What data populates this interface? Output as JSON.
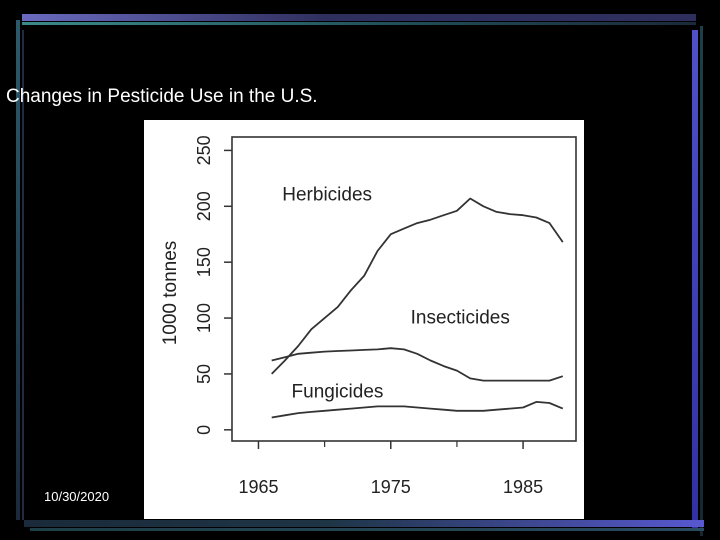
{
  "slide": {
    "title": "Changes in Pesticide Use in the U.S.",
    "date": "10/30/2020"
  },
  "colors": {
    "background": "#000000",
    "panel": "#ffffff",
    "line": "#333333"
  },
  "chart_data": {
    "type": "line",
    "title": "",
    "xlabel": "",
    "ylabel": "1000 tonnes",
    "xlim": [
      1963,
      1989
    ],
    "ylim": [
      -10,
      262
    ],
    "x_ticks": [
      1965,
      1975,
      1985
    ],
    "y_ticks": [
      0,
      50,
      100,
      150,
      200,
      250
    ],
    "grid": false,
    "legend": "none (direct labels)",
    "series": [
      {
        "name": "Herbicides",
        "x": [
          1966,
          1967,
          1968,
          1969,
          1970,
          1971,
          1972,
          1973,
          1974,
          1975,
          1976,
          1977,
          1978,
          1979,
          1980,
          1981,
          1982,
          1983,
          1984,
          1985,
          1986,
          1987,
          1988
        ],
        "y": [
          50,
          62,
          75,
          90,
          100,
          110,
          125,
          138,
          160,
          175,
          180,
          185,
          188,
          192,
          196,
          207,
          200,
          195,
          193,
          192,
          190,
          185,
          168
        ]
      },
      {
        "name": "Insecticides",
        "x": [
          1966,
          1967,
          1968,
          1969,
          1970,
          1971,
          1972,
          1973,
          1974,
          1975,
          1976,
          1977,
          1978,
          1979,
          1980,
          1981,
          1982,
          1983,
          1984,
          1985,
          1986,
          1987,
          1988
        ],
        "y": [
          62,
          65,
          68,
          69,
          70,
          70.5,
          71,
          71.5,
          72,
          73,
          72,
          68,
          62,
          57,
          53,
          46,
          44,
          44,
          44,
          44,
          44,
          44,
          48
        ]
      },
      {
        "name": "Fungicides",
        "x": [
          1966,
          1967,
          1968,
          1969,
          1970,
          1971,
          1972,
          1973,
          1974,
          1975,
          1976,
          1977,
          1978,
          1979,
          1980,
          1981,
          1982,
          1983,
          1984,
          1985,
          1986,
          1987,
          1988
        ],
        "y": [
          11,
          13,
          15,
          16,
          17,
          18,
          19,
          20,
          21,
          21,
          21,
          20,
          19,
          18,
          17,
          17,
          17,
          18,
          19,
          20,
          25,
          24,
          19
        ]
      }
    ]
  }
}
